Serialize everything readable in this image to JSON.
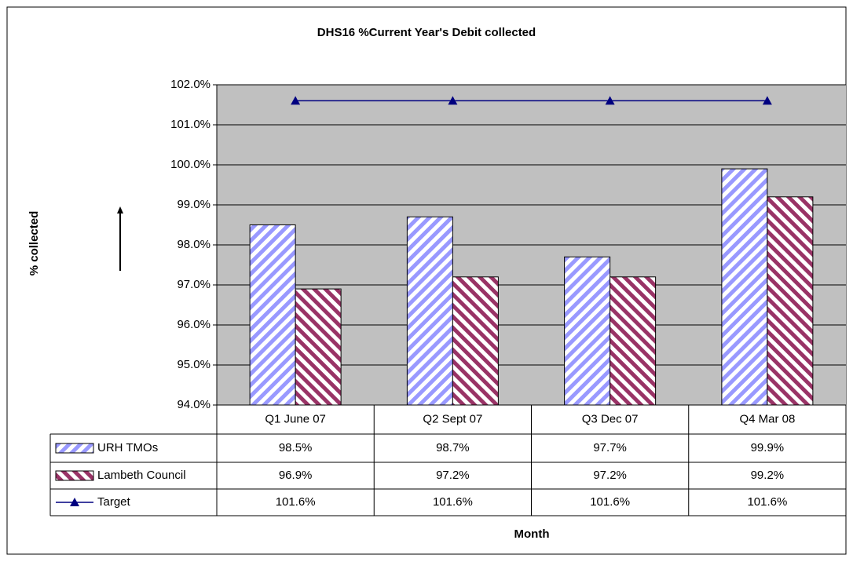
{
  "chart_data": {
    "type": "bar",
    "title": "DHS16 %Current Year's Debit collected",
    "y_label": "% collected",
    "x_label": "Month",
    "categories": [
      "Q1 June 07",
      "Q2 Sept 07",
      "Q3 Dec 07",
      "Q4 Mar 08"
    ],
    "series": [
      {
        "name": "URH TMOs",
        "color": "#9999ff",
        "type": "bar",
        "values": [
          98.5,
          98.7,
          97.7,
          99.9
        ],
        "value_labels": [
          "98.5%",
          "98.7%",
          "97.7%",
          "99.9%"
        ]
      },
      {
        "name": "Lambeth Council",
        "color": "#993366",
        "type": "bar",
        "values": [
          96.9,
          97.2,
          97.2,
          99.2
        ],
        "value_labels": [
          "96.9%",
          "97.2%",
          "97.2%",
          "99.2%"
        ]
      },
      {
        "name": "Target",
        "color": "#000080",
        "type": "line",
        "values": [
          101.6,
          101.6,
          101.6,
          101.6
        ],
        "value_labels": [
          "101.6%",
          "101.6%",
          "101.6%",
          "101.6%"
        ]
      }
    ],
    "ylim": [
      94,
      102
    ],
    "yticks": [
      {
        "value": 94,
        "label": "94.0%"
      },
      {
        "value": 95,
        "label": "95.0%"
      },
      {
        "value": 96,
        "label": "96.0%"
      },
      {
        "value": 97,
        "label": "97.0%"
      },
      {
        "value": 98,
        "label": "98.0%"
      },
      {
        "value": 99,
        "label": "99.0%"
      },
      {
        "value": 100,
        "label": "100.0%"
      },
      {
        "value": 101,
        "label": "101.0%"
      },
      {
        "value": 102,
        "label": "102.0%"
      }
    ],
    "plot_background": "#c0c0c0"
  }
}
